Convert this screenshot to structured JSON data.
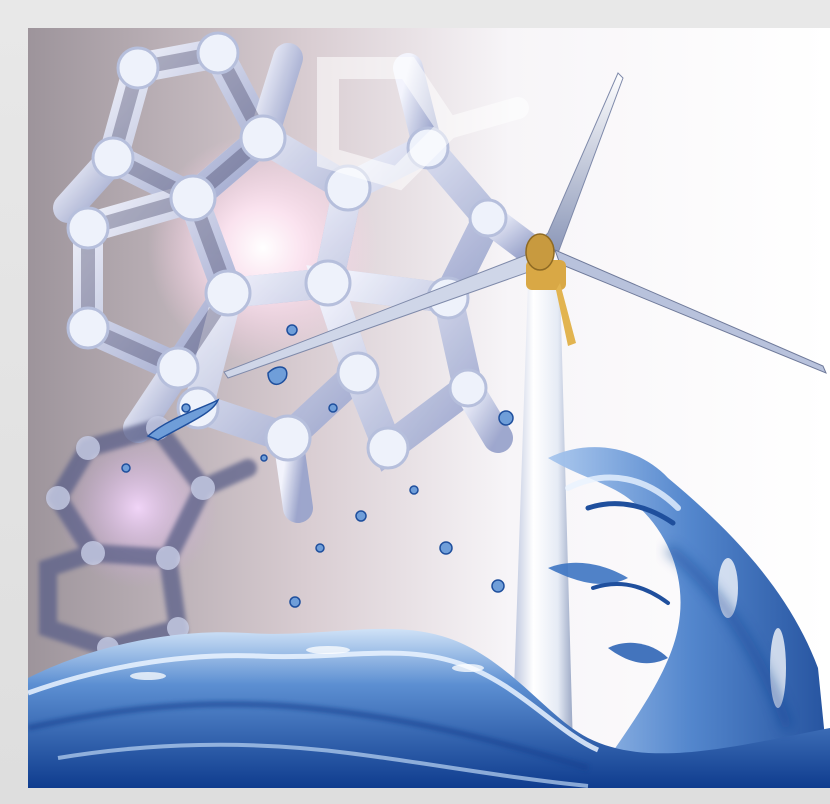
{
  "image": {
    "kind": "illustration",
    "elements": [
      "fullerene-molecule",
      "wind-turbine",
      "water-splash"
    ],
    "colors": {
      "frame": "#e4e4e4",
      "sky_left": "#a39aa0",
      "sky_right": "#ffffff",
      "molecule_light": "#eef2fb",
      "molecule_dark": "#35324e",
      "glow": "#ffd9ec",
      "turbine": "#eceff6",
      "turbine_shadow": "#8f9bb8",
      "hub": "#e2b450",
      "water_dark": "#113d8c",
      "water_mid": "#3f78c6",
      "water_light": "#bfd8f3"
    }
  }
}
